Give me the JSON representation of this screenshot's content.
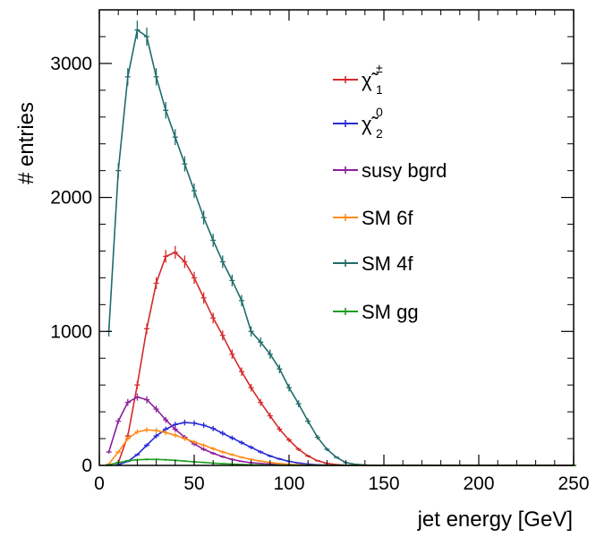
{
  "chart_data": {
    "type": "line",
    "title": "",
    "xlabel": "jet energy [GeV]",
    "ylabel": "# entries",
    "xlim": [
      0,
      250
    ],
    "ylim": [
      0,
      3400
    ],
    "x_ticks": [
      "0",
      "50",
      "100",
      "150",
      "200",
      "250"
    ],
    "y_ticks": [
      "0",
      "1000",
      "2000",
      "3000"
    ],
    "legend_position": "top-right",
    "grid": false,
    "series": [
      {
        "name": "SM 4f",
        "legend_label": "SM 4f",
        "color": "#1f6b6b",
        "x": [
          5,
          10,
          15,
          20,
          25,
          30,
          35,
          40,
          45,
          50,
          55,
          60,
          65,
          70,
          75,
          80,
          85,
          90,
          95,
          100,
          105,
          110,
          115,
          120,
          125,
          130,
          135,
          140,
          145,
          150,
          160,
          180,
          200,
          220,
          240,
          250
        ],
        "y": [
          1000,
          2200,
          2900,
          3250,
          3200,
          2900,
          2650,
          2450,
          2250,
          2050,
          1850,
          1680,
          1520,
          1380,
          1230,
          1000,
          920,
          830,
          720,
          580,
          460,
          330,
          210,
          120,
          60,
          20,
          8,
          3,
          1,
          0,
          0,
          0,
          0,
          0,
          0,
          0
        ]
      },
      {
        "name": "chi1pm",
        "legend_label": "χ̃",
        "legend_sup": "±",
        "legend_sub": "1",
        "color": "#d42a2a",
        "x": [
          10,
          15,
          20,
          25,
          30,
          35,
          40,
          45,
          50,
          55,
          60,
          65,
          70,
          75,
          80,
          85,
          90,
          95,
          100,
          105,
          110,
          115,
          120,
          125,
          130,
          135,
          140,
          150,
          200,
          250
        ],
        "y": [
          20,
          220,
          600,
          1020,
          1360,
          1560,
          1590,
          1520,
          1400,
          1250,
          1100,
          970,
          830,
          700,
          580,
          470,
          370,
          270,
          190,
          120,
          70,
          35,
          15,
          6,
          2,
          1,
          0,
          0,
          0,
          0
        ]
      },
      {
        "name": "chi20",
        "legend_label": "χ̃",
        "legend_sup": "0",
        "legend_sub": "2",
        "color": "#2a2ad4",
        "x": [
          10,
          15,
          20,
          25,
          30,
          35,
          40,
          45,
          50,
          55,
          60,
          65,
          70,
          75,
          80,
          85,
          90,
          95,
          100,
          105,
          110,
          115,
          120,
          130,
          150,
          200,
          250
        ],
        "y": [
          5,
          30,
          80,
          150,
          220,
          270,
          305,
          320,
          315,
          300,
          275,
          240,
          205,
          170,
          135,
          100,
          70,
          48,
          30,
          18,
          10,
          5,
          2,
          0,
          0,
          0,
          0
        ]
      },
      {
        "name": "susy bgrd",
        "legend_label": "susy bgrd",
        "color": "#8e1f9e",
        "x": [
          5,
          10,
          15,
          20,
          25,
          30,
          35,
          40,
          45,
          50,
          55,
          60,
          65,
          70,
          75,
          80,
          90,
          100,
          110,
          120,
          150,
          200,
          250
        ],
        "y": [
          100,
          330,
          470,
          510,
          490,
          420,
          340,
          270,
          210,
          160,
          120,
          90,
          65,
          45,
          30,
          20,
          10,
          4,
          1,
          0,
          0,
          0,
          0
        ]
      },
      {
        "name": "SM 6f",
        "legend_label": "SM 6f",
        "color": "#ff8c1a",
        "x": [
          5,
          10,
          15,
          20,
          25,
          30,
          35,
          40,
          45,
          50,
          55,
          60,
          65,
          70,
          75,
          80,
          85,
          90,
          95,
          100,
          110,
          120,
          150,
          200,
          250
        ],
        "y": [
          10,
          100,
          200,
          250,
          265,
          260,
          245,
          225,
          200,
          175,
          150,
          125,
          100,
          80,
          60,
          45,
          32,
          22,
          14,
          8,
          3,
          1,
          0,
          0,
          0
        ]
      },
      {
        "name": "SM gg",
        "legend_label": "SM gg",
        "color": "#1e9e1e",
        "x": [
          5,
          10,
          15,
          20,
          25,
          30,
          35,
          40,
          45,
          50,
          55,
          60,
          65,
          70,
          75,
          80,
          90,
          100,
          150,
          200,
          250
        ],
        "y": [
          5,
          20,
          35,
          42,
          45,
          45,
          42,
          38,
          32,
          27,
          22,
          17,
          13,
          10,
          7,
          5,
          2,
          1,
          0,
          0,
          0
        ]
      }
    ]
  }
}
